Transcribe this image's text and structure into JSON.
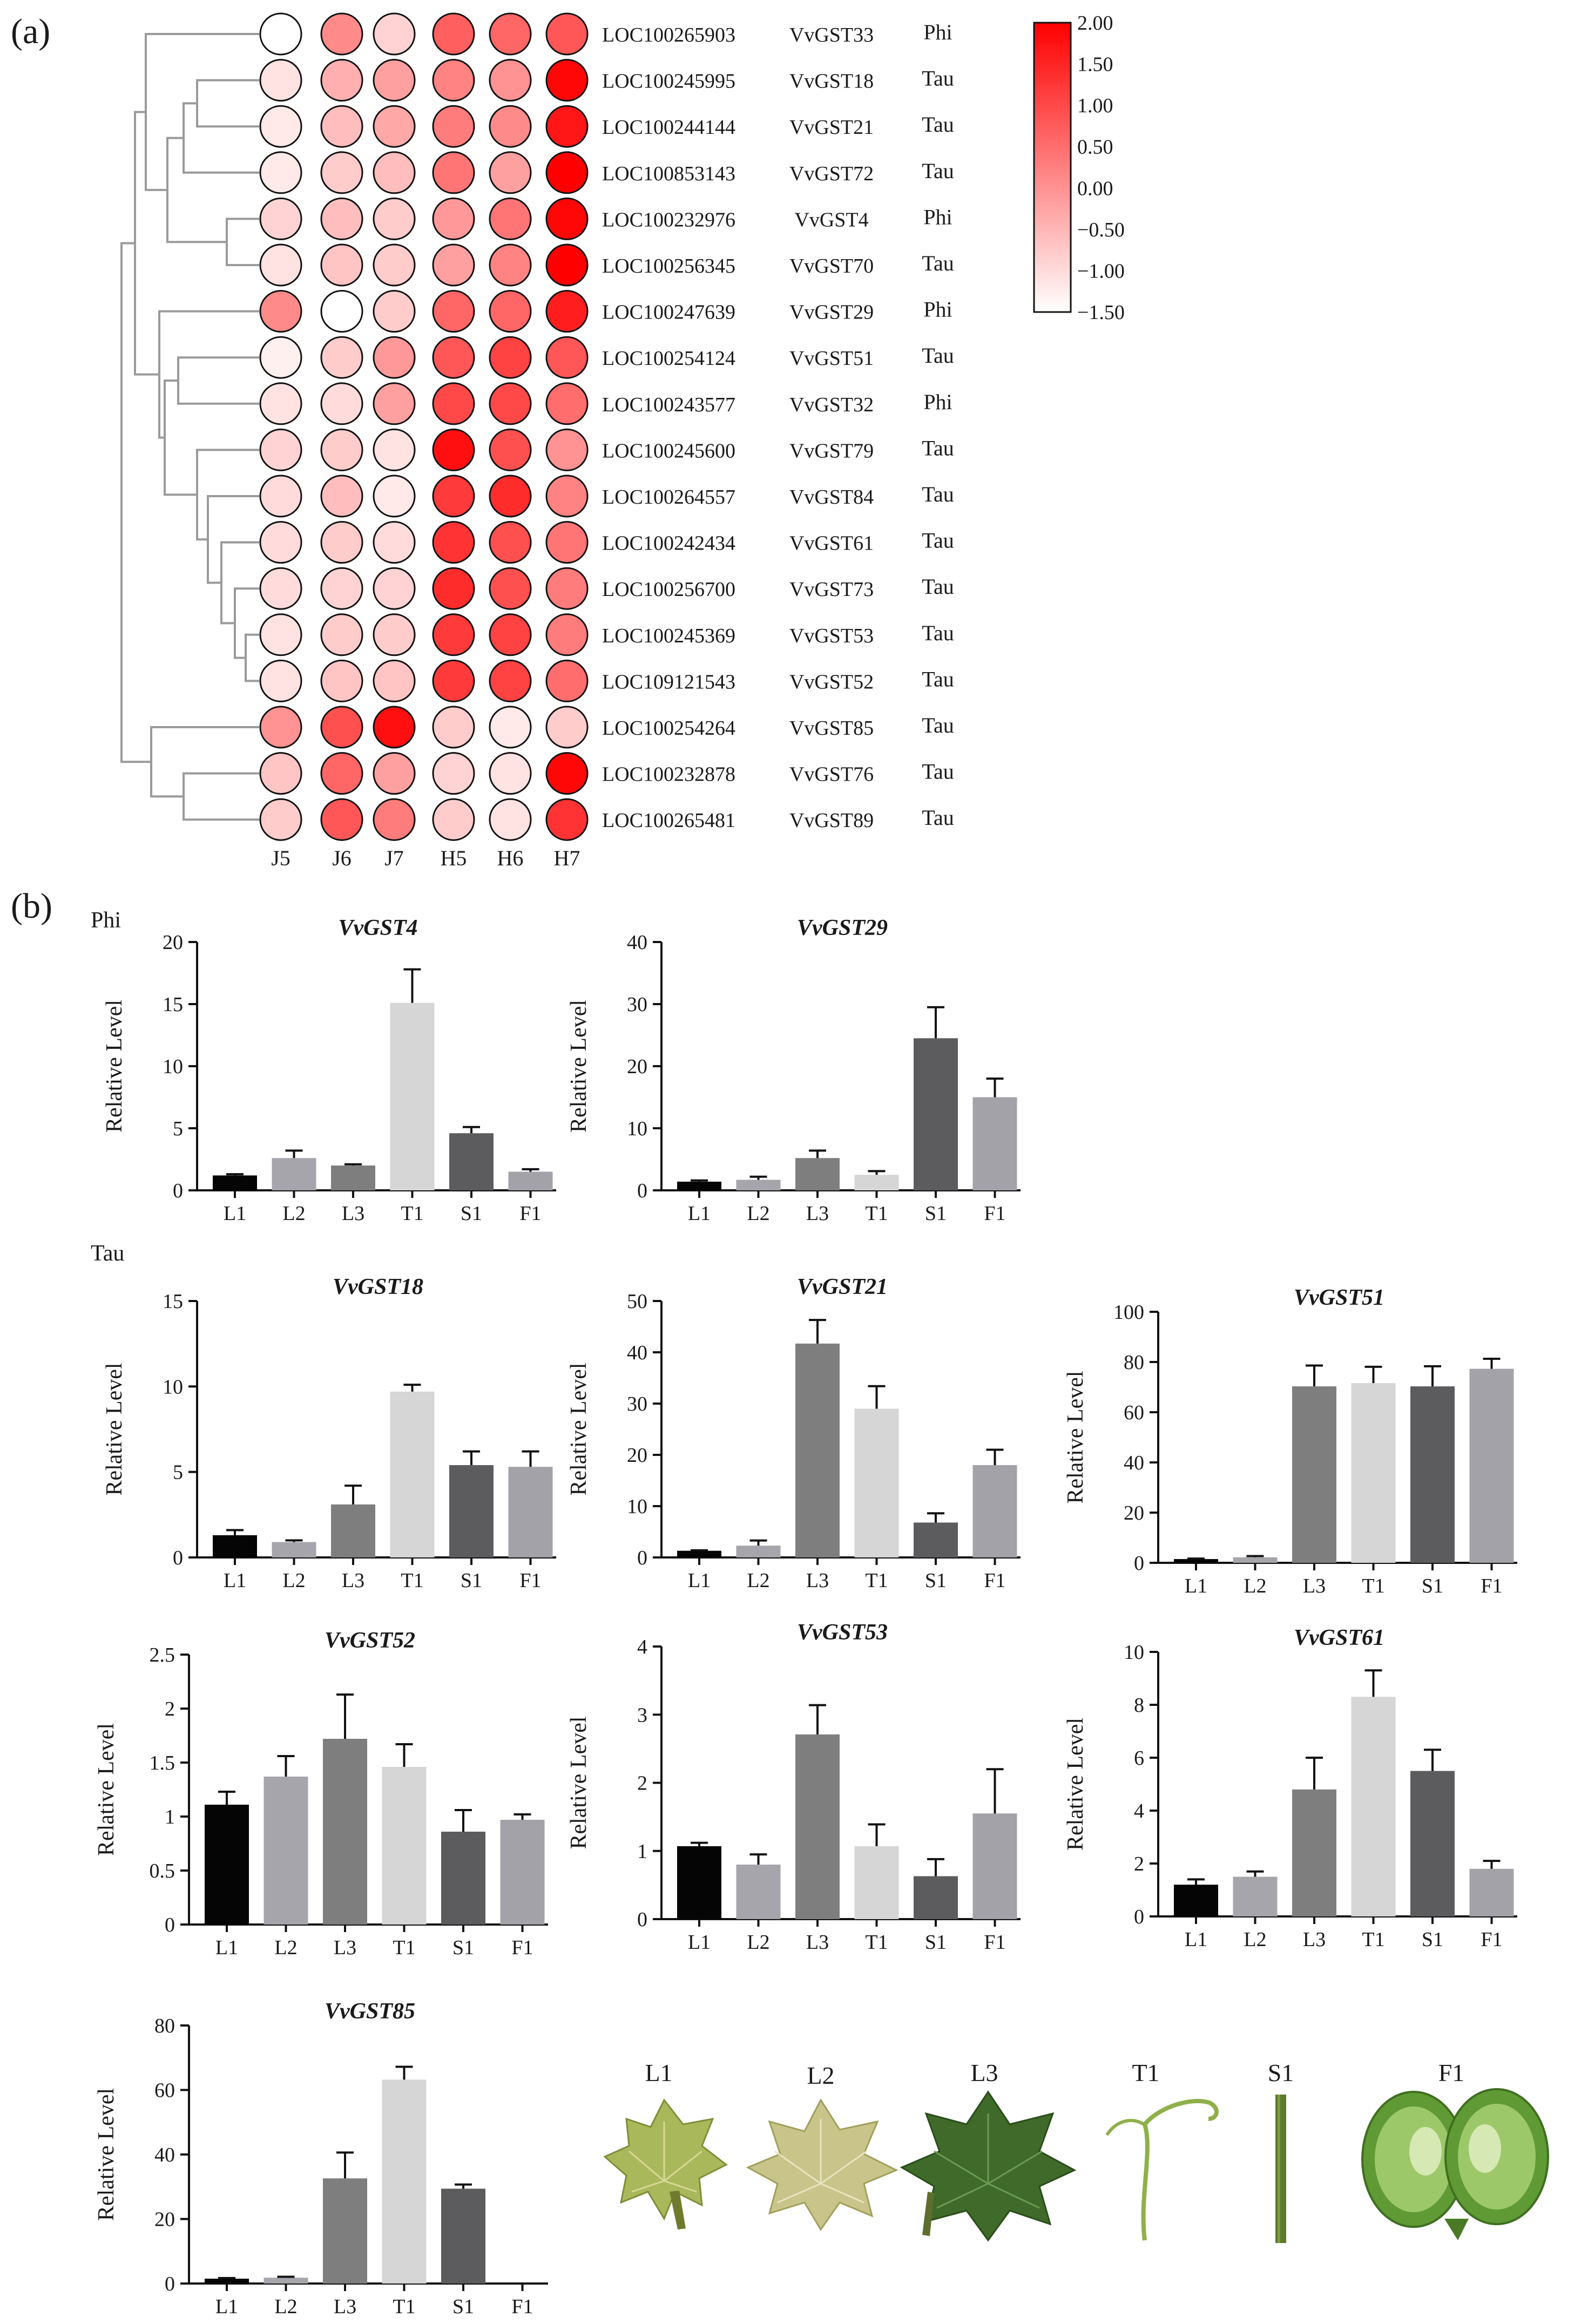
{
  "figure": {
    "panel_a_label": "(a)",
    "panel_b_label": "(b)",
    "group_phi": "Phi",
    "group_tau": "Tau",
    "photo_row": [
      "L1",
      "L2",
      "L3",
      "T1",
      "S1",
      "F1"
    ],
    "photo_alt_names": [
      "young-leaf",
      "expanding-leaf",
      "mature-leaf",
      "tendril",
      "stem",
      "fruit-cross-section"
    ]
  },
  "chart_data": [
    {
      "type": "heatmap",
      "columns": [
        "J5",
        "J6",
        "J7",
        "H5",
        "H6",
        "H7"
      ],
      "rows": [
        {
          "loc": "LOC100265903",
          "gene": "VvGST33",
          "class": "Phi",
          "values": [
            -1.5,
            0.1,
            -0.9,
            0.7,
            0.6,
            0.8
          ]
        },
        {
          "loc": "LOC100245995",
          "gene": "VvGST18",
          "class": "Tau",
          "values": [
            -1.1,
            -0.4,
            -0.2,
            0.2,
            0.0,
            1.9
          ]
        },
        {
          "loc": "LOC100244144",
          "gene": "VvGST21",
          "class": "Tau",
          "values": [
            -1.2,
            -0.6,
            -0.3,
            0.3,
            0.1,
            1.7
          ]
        },
        {
          "loc": "LOC100853143",
          "gene": "VvGST72",
          "class": "Tau",
          "values": [
            -1.2,
            -0.8,
            -0.6,
            0.4,
            -0.2,
            2.0
          ]
        },
        {
          "loc": "LOC100232976",
          "gene": "VvGST4",
          "class": "Phi",
          "values": [
            -0.9,
            -0.6,
            -0.8,
            -0.1,
            0.4,
            1.9
          ]
        },
        {
          "loc": "LOC100256345",
          "gene": "VvGST70",
          "class": "Tau",
          "values": [
            -1.1,
            -0.7,
            -0.8,
            -0.2,
            0.2,
            2.0
          ]
        },
        {
          "loc": "LOC100247639",
          "gene": "VvGST29",
          "class": "Phi",
          "values": [
            0.1,
            -1.5,
            -0.8,
            0.6,
            0.6,
            1.6
          ]
        },
        {
          "loc": "LOC100254124",
          "gene": "VvGST51",
          "class": "Tau",
          "values": [
            -1.3,
            -0.8,
            -0.1,
            0.8,
            1.1,
            0.8
          ]
        },
        {
          "loc": "LOC100243577",
          "gene": "VvGST32",
          "class": "Phi",
          "values": [
            -1.1,
            -1.0,
            -0.2,
            1.0,
            1.0,
            0.5
          ]
        },
        {
          "loc": "LOC100245600",
          "gene": "VvGST79",
          "class": "Tau",
          "values": [
            -0.9,
            -0.8,
            -1.1,
            1.8,
            0.9,
            0.0
          ]
        },
        {
          "loc": "LOC100264557",
          "gene": "VvGST84",
          "class": "Tau",
          "values": [
            -1.0,
            -0.6,
            -1.2,
            1.2,
            1.4,
            0.2
          ]
        },
        {
          "loc": "LOC100242434",
          "gene": "VvGST61",
          "class": "Tau",
          "values": [
            -1.0,
            -0.8,
            -1.0,
            1.3,
            0.9,
            0.4
          ]
        },
        {
          "loc": "LOC100256700",
          "gene": "VvGST73",
          "class": "Tau",
          "values": [
            -1.0,
            -0.9,
            -0.9,
            1.4,
            0.9,
            0.3
          ]
        },
        {
          "loc": "LOC100245369",
          "gene": "VvGST53",
          "class": "Tau",
          "values": [
            -1.1,
            -0.8,
            -0.8,
            1.2,
            1.1,
            0.3
          ]
        },
        {
          "loc": "LOC109121543",
          "gene": "VvGST52",
          "class": "Tau",
          "values": [
            -1.1,
            -0.7,
            -0.7,
            1.2,
            1.1,
            0.5
          ]
        },
        {
          "loc": "LOC100254264",
          "gene": "VvGST85",
          "class": "Tau",
          "values": [
            0.0,
            0.9,
            1.8,
            -0.8,
            -1.2,
            -0.8
          ]
        },
        {
          "loc": "LOC100232878",
          "gene": "VvGST76",
          "class": "Tau",
          "values": [
            -0.7,
            0.6,
            -0.2,
            -0.9,
            -1.1,
            1.9
          ]
        },
        {
          "loc": "LOC100265481",
          "gene": "VvGST89",
          "class": "Tau",
          "values": [
            -0.8,
            0.8,
            0.3,
            -0.8,
            -1.1,
            1.3
          ]
        }
      ],
      "color_scale": {
        "min": -1.5,
        "max": 2.0,
        "low_color": "#ffffff",
        "high_color": "#ff0000",
        "ticks": [
          "2.00",
          "1.50",
          "1.00",
          "0.50",
          "0.00",
          "−0.50",
          "−1.00",
          "−1.50"
        ]
      },
      "dendrogram": true
    },
    {
      "type": "bar",
      "title": "VvGST4",
      "ylabel": "Relative Level",
      "ylim": [
        0,
        20
      ],
      "yticks": [
        0,
        5,
        10,
        15,
        20
      ],
      "categories": [
        "L1",
        "L2",
        "L3",
        "T1",
        "S1",
        "F1"
      ],
      "values": [
        1.2,
        2.6,
        2.0,
        15.1,
        4.6,
        1.5
      ],
      "errors": [
        0.1,
        0.6,
        0.1,
        2.7,
        0.5,
        0.2
      ]
    },
    {
      "type": "bar",
      "title": "VvGST29",
      "ylabel": "Relative Level",
      "ylim": [
        0,
        40
      ],
      "yticks": [
        0,
        10,
        20,
        30,
        40
      ],
      "categories": [
        "L1",
        "L2",
        "L3",
        "T1",
        "S1",
        "F1"
      ],
      "values": [
        1.4,
        1.7,
        5.2,
        2.5,
        24.5,
        15.0
      ],
      "errors": [
        0.2,
        0.5,
        1.2,
        0.6,
        5.0,
        3.0
      ]
    },
    {
      "type": "bar",
      "title": "VvGST18",
      "ylabel": "Relative Level",
      "ylim": [
        0,
        15
      ],
      "yticks": [
        0,
        5,
        10,
        15
      ],
      "categories": [
        "L1",
        "L2",
        "L3",
        "T1",
        "S1",
        "F1"
      ],
      "values": [
        1.3,
        0.9,
        3.1,
        9.7,
        5.4,
        5.3
      ],
      "errors": [
        0.3,
        0.1,
        1.1,
        0.4,
        0.8,
        0.9
      ]
    },
    {
      "type": "bar",
      "title": "VvGST21",
      "ylabel": "Relative Level",
      "ylim": [
        0,
        50
      ],
      "yticks": [
        0,
        10,
        20,
        30,
        40,
        50
      ],
      "categories": [
        "L1",
        "L2",
        "L3",
        "T1",
        "S1",
        "F1"
      ],
      "values": [
        1.3,
        2.3,
        41.7,
        29.0,
        6.8,
        18.0
      ],
      "errors": [
        0.1,
        1.0,
        4.6,
        4.4,
        1.8,
        3.0
      ]
    },
    {
      "type": "bar",
      "title": "VvGST51",
      "ylabel": "Relative Level",
      "ylim": [
        0,
        100
      ],
      "yticks": [
        0,
        20,
        40,
        60,
        80,
        100
      ],
      "categories": [
        "L1",
        "L2",
        "L3",
        "T1",
        "S1",
        "F1"
      ],
      "values": [
        1.5,
        2.2,
        70.3,
        71.6,
        70.3,
        77.3
      ],
      "errors": [
        0.2,
        0.5,
        8.3,
        6.5,
        8.0,
        4.0
      ]
    },
    {
      "type": "bar",
      "title": "VvGST52",
      "ylabel": "Relative Level",
      "ylim": [
        0,
        2.5
      ],
      "yticks": [
        0,
        0.5,
        1,
        1.5,
        2,
        2.5
      ],
      "categories": [
        "L1",
        "L2",
        "L3",
        "T1",
        "S1",
        "F1"
      ],
      "values": [
        1.11,
        1.37,
        1.72,
        1.46,
        0.86,
        0.97
      ],
      "errors": [
        0.12,
        0.19,
        0.41,
        0.21,
        0.2,
        0.05
      ]
    },
    {
      "type": "bar",
      "title": "VvGST53",
      "ylabel": "Relative Level",
      "ylim": [
        0,
        4
      ],
      "yticks": [
        0,
        1,
        2,
        3,
        4
      ],
      "categories": [
        "L1",
        "L2",
        "L3",
        "T1",
        "S1",
        "F1"
      ],
      "values": [
        1.07,
        0.8,
        2.71,
        1.07,
        0.63,
        1.55
      ],
      "errors": [
        0.05,
        0.15,
        0.43,
        0.32,
        0.25,
        0.65
      ]
    },
    {
      "type": "bar",
      "title": "VvGST61",
      "ylabel": "Relative Level",
      "ylim": [
        0,
        10
      ],
      "yticks": [
        0,
        2,
        4,
        6,
        8,
        10
      ],
      "categories": [
        "L1",
        "L2",
        "L3",
        "T1",
        "S1",
        "F1"
      ],
      "values": [
        1.2,
        1.5,
        4.8,
        8.3,
        5.5,
        1.8
      ],
      "errors": [
        0.2,
        0.2,
        1.2,
        1.0,
        0.8,
        0.3
      ]
    },
    {
      "type": "bar",
      "title": "VvGST85",
      "ylabel": "Relative Level",
      "ylim": [
        0,
        80
      ],
      "yticks": [
        0,
        20,
        40,
        60,
        80
      ],
      "categories": [
        "L1",
        "L2",
        "L3",
        "T1",
        "S1",
        "F1"
      ],
      "values": [
        1.5,
        1.8,
        32.6,
        63.2,
        29.4,
        0
      ],
      "errors": [
        0.2,
        0.3,
        8.0,
        4.0,
        1.3,
        0
      ]
    }
  ]
}
